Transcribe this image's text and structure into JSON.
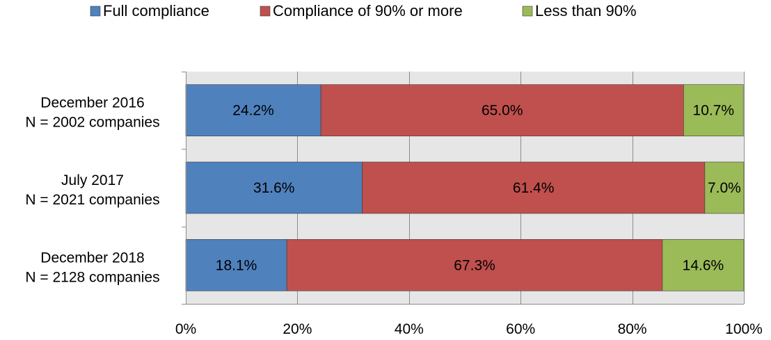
{
  "chart_data": {
    "type": "bar",
    "orientation": "horizontal",
    "stacked": true,
    "percent_stacked": true,
    "categories": [
      {
        "line1": "December 2016",
        "line2": "N = 2002 companies"
      },
      {
        "line1": "July 2017",
        "line2": "N = 2021 companies"
      },
      {
        "line1": "December 2018",
        "line2": "N = 2128 companies"
      }
    ],
    "series": [
      {
        "name": "Full compliance",
        "color": "#4F81BD",
        "values": [
          24.2,
          31.6,
          18.1
        ],
        "labels": [
          "24.2%",
          "31.6%",
          "18.1%"
        ]
      },
      {
        "name": "Compliance of 90% or more",
        "color": "#C0504D",
        "values": [
          65.0,
          61.4,
          67.3
        ],
        "labels": [
          "65.0%",
          "61.4%",
          "67.3%"
        ]
      },
      {
        "name": "Less than 90%",
        "color": "#9BBB59",
        "values": [
          10.7,
          7.0,
          14.6
        ],
        "labels": [
          "10.7%",
          "7.0%",
          "14.6%"
        ]
      }
    ],
    "xlim": [
      0,
      100
    ],
    "x_ticks": [
      0,
      20,
      40,
      60,
      80,
      100
    ],
    "x_tick_labels": [
      "0%",
      "20%",
      "40%",
      "60%",
      "80%",
      "100%"
    ],
    "title": "",
    "xlabel": "",
    "ylabel": "",
    "grid": "vertical",
    "plot_background": "#E6E6E6",
    "legend_position": "top"
  }
}
